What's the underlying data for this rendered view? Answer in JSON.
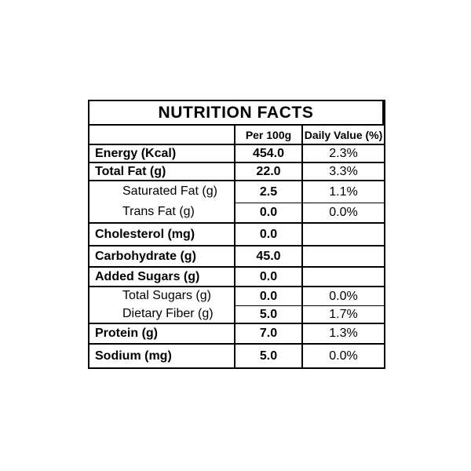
{
  "page": {
    "background": "#ffffff",
    "text_color": "#000000",
    "border_color": "#000000"
  },
  "table": {
    "title": "NUTRITION FACTS",
    "columns": [
      "",
      "Per 100g",
      "Daily Value (%)"
    ],
    "rows": [
      {
        "label": "Energy (Kcal)",
        "per_100g": "454.0",
        "daily_value": "2.3%",
        "style": "main"
      },
      {
        "label": "Total Fat (g)",
        "per_100g": "22.0",
        "daily_value": "3.3%",
        "style": "main"
      },
      {
        "label": "Saturated Fat (g)",
        "per_100g": "2.5",
        "daily_value": "1.1%",
        "style": "sub"
      },
      {
        "label": "Trans Fat (g)",
        "per_100g": "0.0",
        "daily_value": "0.0%",
        "style": "sub"
      },
      {
        "label": "Cholesterol (mg)",
        "per_100g": "0.0",
        "daily_value": "",
        "style": "main"
      },
      {
        "label": "Carbohydrate (g)",
        "per_100g": "45.0",
        "daily_value": "",
        "style": "main"
      },
      {
        "label": "Added Sugars (g)",
        "per_100g": "0.0",
        "daily_value": "",
        "style": "main"
      },
      {
        "label": "Total Sugars (g)",
        "per_100g": "0.0",
        "daily_value": "0.0%",
        "style": "sub"
      },
      {
        "label": "Dietary Fiber (g)",
        "per_100g": "5.0",
        "daily_value": "1.7%",
        "style": "sub"
      },
      {
        "label": "Protein (g)",
        "per_100g": "7.0",
        "daily_value": "1.3%",
        "style": "main"
      },
      {
        "label": "Sodium (mg)",
        "per_100g": "5.0",
        "daily_value": "0.0%",
        "style": "main"
      }
    ]
  }
}
